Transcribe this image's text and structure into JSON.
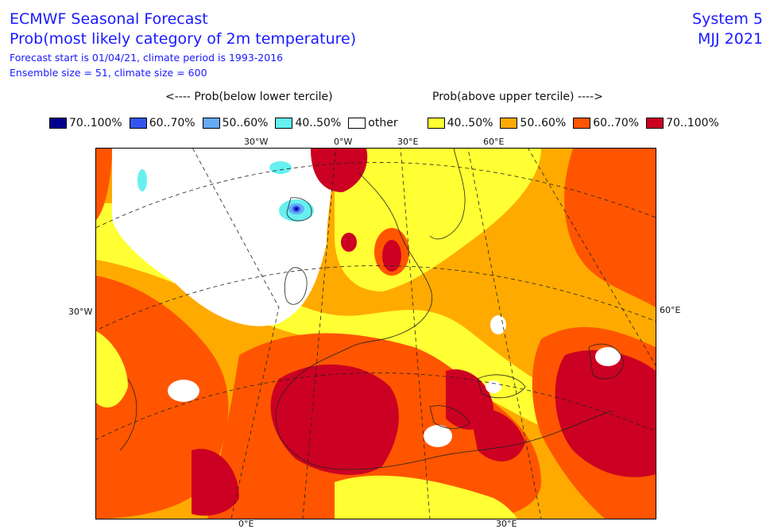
{
  "header": {
    "line1": "ECMWF Seasonal Forecast",
    "line2": "Prob(most likely category of 2m temperature)",
    "line3": "Forecast start is 01/04/21, climate period is 1993-2016",
    "line4": "Ensemble size = 51, climate size = 600",
    "system": "System 5",
    "period": "MJJ 2021"
  },
  "legend": {
    "below_label": "<---- Prob(below lower tercile)",
    "above_label": "Prob(above upper tercile) ---->",
    "items": [
      {
        "label": "70..100%",
        "color": "#00008c"
      },
      {
        "label": "60..70%",
        "color": "#3355ee"
      },
      {
        "label": "50..60%",
        "color": "#66aaf5"
      },
      {
        "label": "40..50%",
        "color": "#66f0f0"
      },
      {
        "label": "other",
        "color": "#ffffff"
      },
      {
        "label": "40..50%",
        "color": "#ffff33"
      },
      {
        "label": "50..60%",
        "color": "#ffaa00"
      },
      {
        "label": "60..70%",
        "color": "#ff5500"
      },
      {
        "label": "70..100%",
        "color": "#cc0022"
      }
    ]
  },
  "map": {
    "region": "Europe",
    "labels": {
      "top_30w": "30°W",
      "top_0w": "0°W",
      "top_30e": "30°E",
      "top_60e": "60°E",
      "left_30w": "30°W",
      "right_60e": "60°E",
      "bottom_0e": "0°E",
      "bottom_30e": "30°E"
    }
  }
}
